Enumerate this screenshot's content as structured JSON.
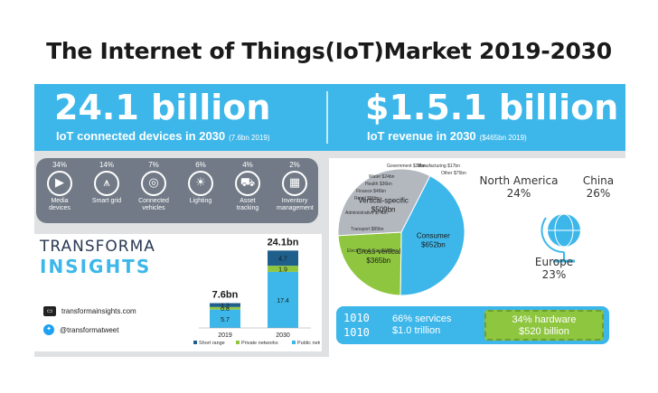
{
  "title": "The Internet of Things(IoT)Market 2019-2030",
  "banner": {
    "left_big": "24.1 billion",
    "left_sub": "IoT connected devices in 2030",
    "left_note": "(7.6bn 2019)",
    "right_big": "$1.5.1 billion",
    "right_sub": "IoT revenue in 2030",
    "right_note": "($465bn 2019)"
  },
  "devices": [
    {
      "pct": "34%",
      "label": "Media devices",
      "icon": "monitor-icon"
    },
    {
      "pct": "14%",
      "label": "Smart grid",
      "icon": "pylon-icon"
    },
    {
      "pct": "7%",
      "label": "Connected vehicles",
      "icon": "steering-wheel-icon"
    },
    {
      "pct": "6%",
      "label": "Lighting",
      "icon": "bulb-icon"
    },
    {
      "pct": "4%",
      "label": "Asset tracking",
      "icon": "trolley-icon"
    },
    {
      "pct": "2%",
      "label": "Inventory management",
      "icon": "boxes-icon"
    }
  ],
  "brand": {
    "line1": "TRANSFORMA",
    "line2": "INSIGHTS",
    "site": "transformainsights.com",
    "twitter": "@transformatweet"
  },
  "chart_data": [
    {
      "type": "bar",
      "categories": [
        "2019",
        "2030"
      ],
      "totals": [
        "7.6bn",
        "24.1bn"
      ],
      "series": [
        {
          "name": "Short range",
          "values": [
            1.2,
            4.7
          ],
          "color": "#1f5f8b"
        },
        {
          "name": "Private networks",
          "values": [
            0.8,
            1.9
          ],
          "color": "#8fc640"
        },
        {
          "name": "Public networks",
          "values": [
            5.7,
            17.4
          ],
          "color": "#3db7ea"
        }
      ]
    },
    {
      "type": "pie",
      "slices": [
        {
          "label": "Consumer",
          "value_label": "$652bn",
          "value": 652,
          "color": "#3db7ea"
        },
        {
          "label": "Cross-vertical",
          "value_label": "$365bn",
          "value": 365,
          "color": "#8fc640"
        },
        {
          "label": "Vertical-specific",
          "value_label": "$509bn",
          "value": 509,
          "color": "#b3b8bf"
        }
      ],
      "small_labels": [
        {
          "text": "Government $28bn"
        },
        {
          "text": "Manufacturing $17bn"
        },
        {
          "text": "Other $75bn"
        },
        {
          "text": "Water $24bn"
        },
        {
          "text": "Health $36bn"
        },
        {
          "text": "Finance $46bn"
        },
        {
          "text": "Retail $50bn"
        },
        {
          "text": "Administrative $74bn"
        },
        {
          "text": "Transport $89bn"
        },
        {
          "text": "Electricity & Gas $120bn"
        }
      ]
    }
  ],
  "regions": {
    "na_name": "North America",
    "na_pct": "24%",
    "china_name": "China",
    "china_pct": "26%",
    "eu_name": "Europe",
    "eu_pct": "23%"
  },
  "split": {
    "bits": "1010",
    "services_pct": "66% services",
    "services_val": "$1.0 trillion",
    "hardware_pct": "34% hardware",
    "hardware_val": "$520 billion"
  },
  "colors": {
    "accent": "#3db7ea",
    "green": "#8fc640",
    "panel": "#717a86"
  }
}
